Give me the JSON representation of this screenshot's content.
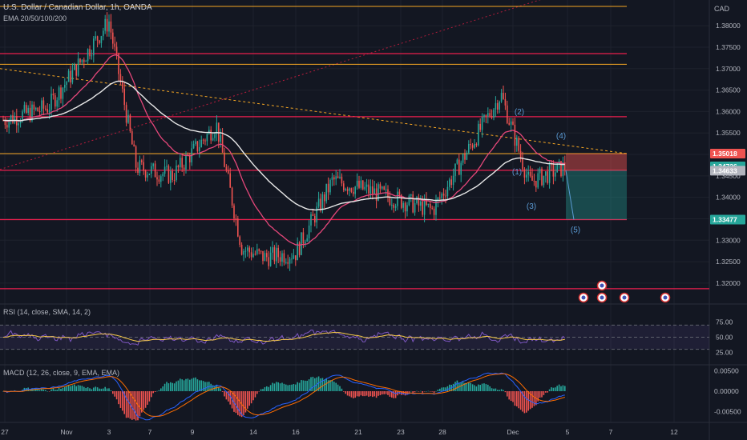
{
  "header": {
    "title": "U.S. Dollar / Canadian Dollar, 1h, OANDA",
    "indicator": "EMA 20/50/100/200"
  },
  "currency": "CAD",
  "panes": {
    "rsi_label": "RSI (14, close, SMA, 14, 2)",
    "macd_label": "MACD (12, 26, close, 9, EMA, EMA)"
  },
  "colors": {
    "background": "#131722",
    "up": "#26a69a",
    "down": "#ef5350",
    "ema_fast": "#e5477a",
    "ema_slow": "#e8e8e8",
    "resistance": "#e91e4d",
    "orange_level": "#f5a623",
    "rsi_line": "#7e57c2",
    "rsi_ma": "#f7c948",
    "macd_line": "#2962ff",
    "signal_line": "#ff6d00"
  },
  "chart_data": {
    "type": "candlestick",
    "title": "U.S. Dollar / Canadian Dollar, 1h, OANDA",
    "ylim": [
      1.3155,
      1.386
    ],
    "y_ticks": [
      1.32,
      1.325,
      1.33,
      1.335,
      1.34,
      1.345,
      1.35,
      1.355,
      1.36,
      1.365,
      1.37,
      1.375,
      1.38
    ],
    "x_tick_labels": [
      "27",
      "Nov",
      "3",
      "7",
      "9",
      "14",
      "16",
      "21",
      "23",
      "28",
      "Dec",
      "5",
      "7",
      "12"
    ],
    "price_path_keypoints": [
      {
        "x": "Oct 27",
        "y": 1.358
      },
      {
        "x": "Oct 30",
        "y": 1.361
      },
      {
        "x": "Nov 1",
        "y": 1.367
      },
      {
        "x": "Nov 3",
        "y": 1.381
      },
      {
        "x": "Nov 6",
        "y": 1.347
      },
      {
        "x": "Nov 8",
        "y": 1.345
      },
      {
        "x": "Nov 10",
        "y": 1.357
      },
      {
        "x": "Nov 13",
        "y": 1.328
      },
      {
        "x": "Nov 15",
        "y": 1.326
      },
      {
        "x": "Nov 17",
        "y": 1.327
      },
      {
        "x": "Nov 20",
        "y": 1.344
      },
      {
        "x": "Nov 22",
        "y": 1.341
      },
      {
        "x": "Nov 27",
        "y": 1.337
      },
      {
        "x": "Nov 29",
        "y": 1.364
      },
      {
        "x": "Dec 1",
        "y": 1.3435
      },
      {
        "x": "Dec 4",
        "y": 1.3472
      }
    ],
    "levels": {
      "orange": [
        1.3845,
        1.371,
        1.3502
      ],
      "red": [
        1.3735,
        1.3588,
        1.3463,
        1.3348,
        1.3187
      ]
    },
    "price_labels": [
      {
        "value": "1.35018",
        "color": "#ef5350"
      },
      {
        "value": "1.34726",
        "color": "#26a69a"
      },
      {
        "value": "1.34633",
        "color": "#b2b5be"
      },
      {
        "value": "1.33477",
        "color": "#26a69a"
      }
    ],
    "wave_labels": [
      "(1)",
      "(2)",
      "(3)",
      "(4)",
      "(5)"
    ],
    "short_position": {
      "entry": 1.3463,
      "stop": 1.3502,
      "target": 1.3348
    }
  },
  "rsi": {
    "y_ticks": [
      "75.00",
      "50.00",
      "25.00"
    ]
  },
  "macd": {
    "y_ticks": [
      "0.00500",
      "0.00000",
      "-0.00500"
    ]
  }
}
